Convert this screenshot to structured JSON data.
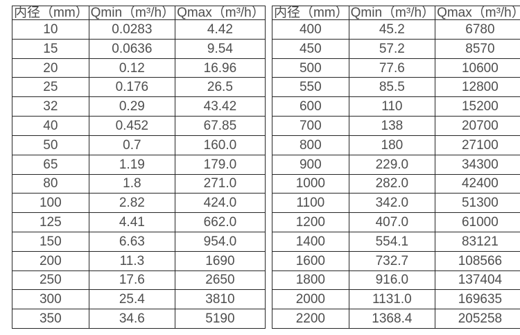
{
  "page": {
    "background": "#ffffff",
    "border_color": "#262626",
    "text_color": "#4e4e4e"
  },
  "tables": [
    {
      "headers": [
        "内径（mm）",
        "Qmin（m³/h）",
        "Qmax（m³/h）"
      ],
      "rows": [
        [
          "10",
          "0.0283",
          "4.42"
        ],
        [
          "15",
          "0.0636",
          "9.54"
        ],
        [
          "20",
          "0.12",
          "16.96"
        ],
        [
          "25",
          "0.176",
          "26.5"
        ],
        [
          "32",
          "0.29",
          "43.42"
        ],
        [
          "40",
          "0.452",
          "67.85"
        ],
        [
          "50",
          "0.7",
          "160.0"
        ],
        [
          "65",
          "1.19",
          "179.0"
        ],
        [
          "80",
          "1.8",
          "271.0"
        ],
        [
          "100",
          "2.82",
          "424.0"
        ],
        [
          "125",
          "4.41",
          "662.0"
        ],
        [
          "150",
          "6.63",
          "954.0"
        ],
        [
          "200",
          "11.3",
          "1690"
        ],
        [
          "250",
          "17.6",
          "2650"
        ],
        [
          "300",
          "25.4",
          "3810"
        ],
        [
          "350",
          "34.6",
          "5190"
        ]
      ]
    },
    {
      "headers": [
        "内径（mm）",
        "Qmin（m³/h）",
        "Qmax（m³/h）"
      ],
      "rows": [
        [
          "400",
          "45.2",
          "6780"
        ],
        [
          "450",
          "57.2",
          "8570"
        ],
        [
          "500",
          "77.6",
          "10600"
        ],
        [
          "550",
          "85.5",
          "12800"
        ],
        [
          "600",
          "110",
          "15200"
        ],
        [
          "700",
          "138",
          "20700"
        ],
        [
          "800",
          "180",
          "27100"
        ],
        [
          "900",
          "229.0",
          "34300"
        ],
        [
          "1000",
          "282.0",
          "42400"
        ],
        [
          "1100",
          "342.0",
          "51300"
        ],
        [
          "1200",
          "407.0",
          "61000"
        ],
        [
          "1400",
          "554.1",
          "83121"
        ],
        [
          "1600",
          "732.7",
          "108566"
        ],
        [
          "1800",
          "916.0",
          "137404"
        ],
        [
          "2000",
          "1131.0",
          "169635"
        ],
        [
          "2200",
          "1368.4",
          "205258"
        ]
      ]
    }
  ]
}
